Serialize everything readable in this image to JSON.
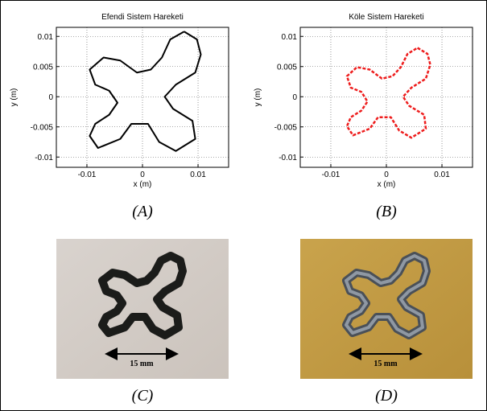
{
  "chart_data": [
    {
      "type": "line",
      "title": "Efendi Sistem Hareketi",
      "xlabel": "x (m)",
      "ylabel": "y (m)",
      "x": [
        0.0075,
        0.0098,
        0.0105,
        0.0095,
        0.006,
        0.004,
        0.0055,
        0.009,
        0.0095,
        0.006,
        0.003,
        0.001,
        -0.002,
        -0.004,
        -0.008,
        -0.0095,
        -0.0085,
        -0.006,
        -0.0045,
        -0.006,
        -0.0085,
        -0.0095,
        -0.007,
        -0.004,
        -0.001,
        0.0015,
        0.0035,
        0.005,
        0.0075
      ],
      "series": [
        {
          "color": "#000000",
          "linestyle": "solid",
          "values": [
            0.0108,
            0.0095,
            0.007,
            0.004,
            0.002,
            0.0,
            -0.002,
            -0.004,
            -0.007,
            -0.009,
            -0.0075,
            -0.0045,
            -0.0045,
            -0.007,
            -0.0085,
            -0.0065,
            -0.0045,
            -0.003,
            -0.001,
            0.001,
            0.002,
            0.0045,
            0.0065,
            0.006,
            0.004,
            0.0045,
            0.0065,
            0.0095,
            0.0108
          ]
        }
      ],
      "xlim": [
        -0.0155,
        0.0155
      ],
      "ylim": [
        -0.0117,
        0.0115
      ],
      "xticks": [
        -0.01,
        0,
        0.01
      ],
      "yticks": [
        -0.01,
        -0.005,
        0,
        0.005,
        0.01
      ],
      "grid": true
    },
    {
      "type": "line",
      "title": "Köle Sistem Hareketi",
      "xlabel": "x (m)",
      "ylabel": "y (m)",
      "x": [
        0.0056,
        0.0074,
        0.0079,
        0.0071,
        0.0045,
        0.003,
        0.0041,
        0.0068,
        0.0071,
        0.0045,
        0.0023,
        0.0008,
        -0.0015,
        -0.003,
        -0.006,
        -0.0071,
        -0.0064,
        -0.0045,
        -0.0034,
        -0.0045,
        -0.0064,
        -0.0071,
        -0.0053,
        -0.003,
        -0.0008,
        0.0011,
        0.0026,
        0.0038,
        0.0056
      ],
      "series": [
        {
          "color": "#ee1c1c",
          "linestyle": "dashed",
          "values": [
            0.0081,
            0.0071,
            0.0053,
            0.003,
            0.0015,
            0.0,
            -0.0015,
            -0.003,
            -0.0053,
            -0.0068,
            -0.0056,
            -0.0034,
            -0.0034,
            -0.0053,
            -0.0064,
            -0.0049,
            -0.0034,
            -0.0023,
            -0.0008,
            0.0008,
            0.0015,
            0.0034,
            0.0049,
            0.0045,
            0.003,
            0.0034,
            0.0049,
            0.0071,
            0.0081
          ]
        }
      ],
      "xlim": [
        -0.0155,
        0.0155
      ],
      "ylim": [
        -0.0117,
        0.0115
      ],
      "xticks": [
        -0.01,
        0,
        0.01
      ],
      "yticks": [
        -0.01,
        -0.005,
        0,
        0.005,
        0.01
      ],
      "grid": true
    }
  ],
  "captions": [
    "(A)",
    "(B)",
    "(C)",
    "(D)"
  ],
  "photos": [
    {
      "scale_label": "15 mm"
    },
    {
      "scale_label": "15 mm"
    }
  ]
}
